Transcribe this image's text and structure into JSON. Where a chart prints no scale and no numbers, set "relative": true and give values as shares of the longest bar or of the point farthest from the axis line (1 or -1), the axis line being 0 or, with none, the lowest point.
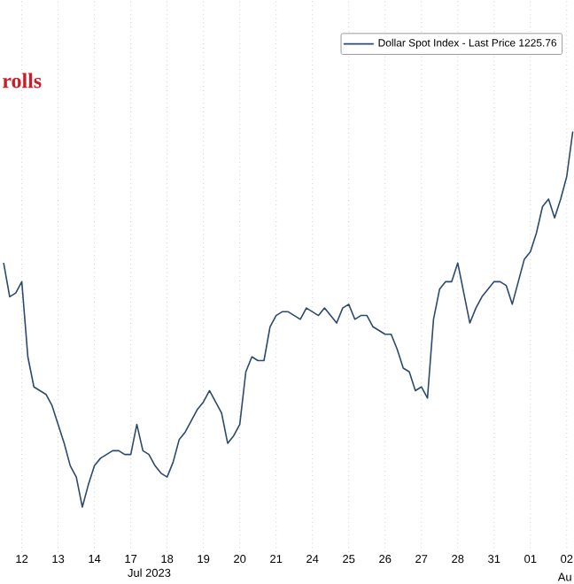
{
  "chart_data": {
    "type": "line",
    "title": "rolls",
    "xlabel": "Jul 2023",
    "annotations": [
      "Au"
    ],
    "relative": true,
    "categories": [
      null,
      null,
      null,
      "12",
      null,
      null,
      null,
      null,
      null,
      "13",
      null,
      null,
      null,
      null,
      null,
      "14",
      null,
      null,
      null,
      null,
      null,
      "17",
      null,
      null,
      null,
      null,
      null,
      "18",
      null,
      null,
      null,
      null,
      null,
      "19",
      null,
      null,
      null,
      null,
      null,
      "20",
      null,
      null,
      null,
      null,
      null,
      "21",
      null,
      null,
      null,
      null,
      null,
      "24",
      null,
      null,
      null,
      null,
      null,
      "25",
      null,
      null,
      null,
      null,
      null,
      "26",
      null,
      null,
      null,
      null,
      null,
      "27",
      null,
      null,
      null,
      null,
      null,
      "28",
      null,
      null,
      null,
      null,
      null,
      "31",
      null,
      null,
      null,
      null,
      null,
      "01",
      null,
      null,
      null,
      null,
      null,
      "02",
      null
    ],
    "grid": "x",
    "legend": "top right",
    "series": [
      {
        "name": "Dollar Spot Index - Last Price 1225.76",
        "color": "#2b4a6f",
        "values": [
          0.65,
          0.56,
          0.57,
          0.6,
          0.4,
          0.32,
          0.31,
          0.3,
          0.27,
          0.22,
          0.17,
          0.11,
          0.08,
          0,
          0.06,
          0.11,
          0.13,
          0.14,
          0.15,
          0.15,
          0.14,
          0.14,
          0.22,
          0.15,
          0.14,
          0.11,
          0.09,
          0.08,
          0.12,
          0.18,
          0.2,
          0.23,
          0.26,
          0.28,
          0.31,
          0.28,
          0.25,
          0.17,
          0.19,
          0.22,
          0.36,
          0.4,
          0.39,
          0.39,
          0.48,
          0.51,
          0.52,
          0.52,
          0.51,
          0.5,
          0.53,
          0.52,
          0.51,
          0.53,
          0.51,
          0.49,
          0.53,
          0.54,
          0.5,
          0.51,
          0.51,
          0.48,
          0.47,
          0.46,
          0.46,
          0.42,
          0.37,
          0.36,
          0.31,
          0.32,
          0.29,
          0.5,
          0.58,
          0.6,
          0.6,
          0.65,
          0.57,
          0.49,
          0.53,
          0.56,
          0.58,
          0.6,
          0.6,
          0.59,
          0.54,
          0.6,
          0.66,
          0.68,
          0.73,
          0.8,
          0.82,
          0.77,
          0.82,
          0.88,
          1.0
        ]
      }
    ]
  }
}
